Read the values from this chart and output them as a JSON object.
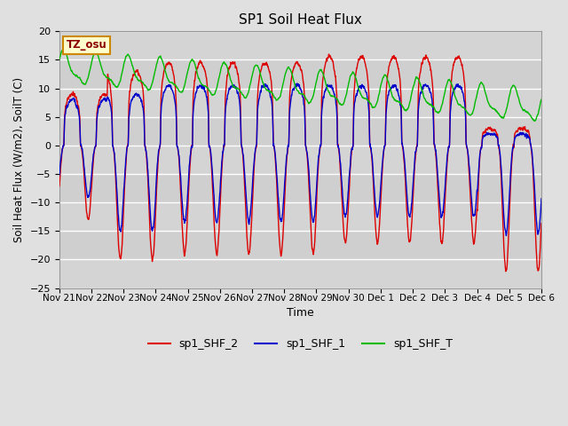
{
  "title": "SP1 Soil Heat Flux",
  "xlabel": "Time",
  "ylabel": "Soil Heat Flux (W/m2), SoilT (C)",
  "ylim": [
    -25,
    20
  ],
  "yticks": [
    -25,
    -20,
    -15,
    -10,
    -5,
    0,
    5,
    10,
    15,
    20
  ],
  "bg_color": "#e0e0e0",
  "plot_bg_color": "#d4d4d4",
  "grid_color": "#ffffff",
  "line_colors": {
    "shf2": "#dd0000",
    "shf1": "#0000cc",
    "shft": "#00bb00"
  },
  "legend_labels": [
    "sp1_SHF_2",
    "sp1_SHF_1",
    "sp1_SHF_T"
  ],
  "tz_label": "TZ_osu",
  "xtick_labels": [
    "Nov 21",
    "Nov 22",
    "Nov 23",
    "Nov 24",
    "Nov 25",
    "Nov 26",
    "Nov 27",
    "Nov 28",
    "Nov 29",
    "Nov 30",
    "Dec 1",
    "Dec 2",
    "Dec 3",
    "Dec 4",
    "Dec 5",
    "Dec 6"
  ],
  "num_days": 15,
  "points_per_day": 288
}
